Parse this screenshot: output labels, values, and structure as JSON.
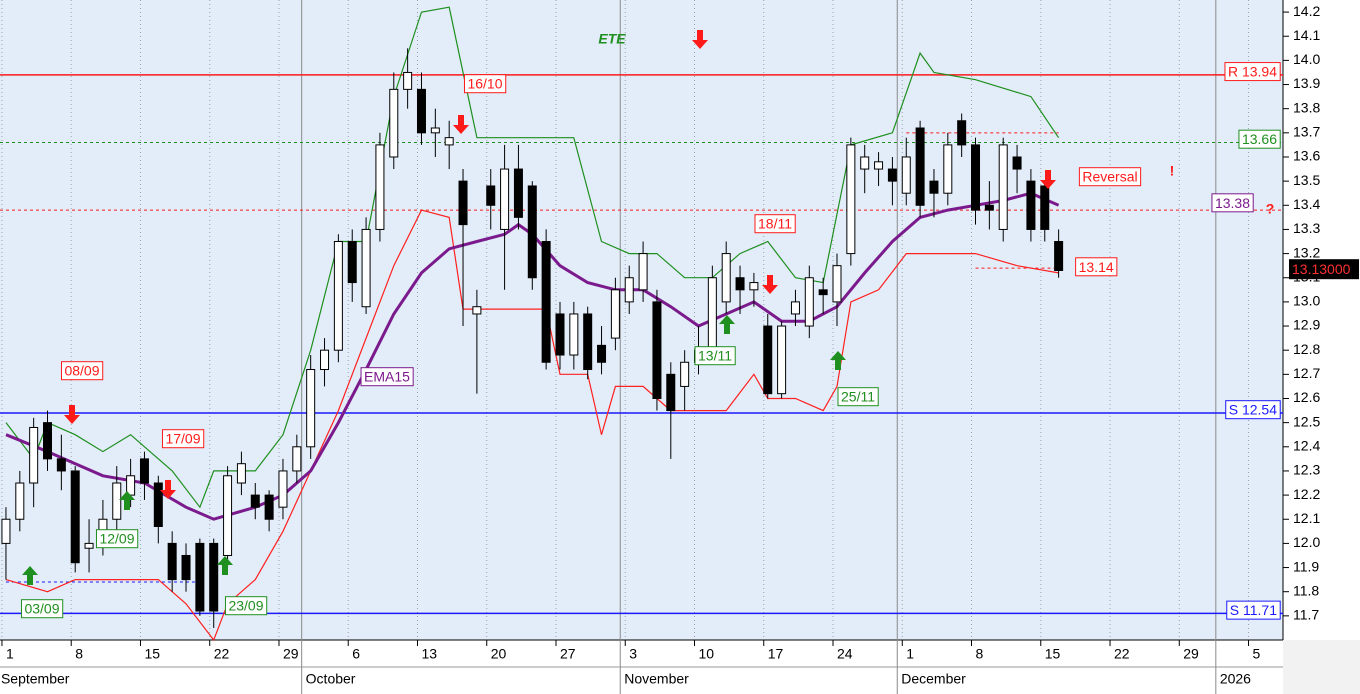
{
  "chart_data": {
    "type": "candlestick",
    "title": "ETE",
    "xlim": [
      -0.43,
      92.2
    ],
    "ylim": [
      11.6,
      14.25
    ],
    "yticks": [
      14.2,
      14.1,
      {
        "value": 14,
        "label": "14.0"
      },
      13.9,
      13.8,
      13.7,
      13.6,
      13.5,
      13.4,
      13.3,
      13.2,
      13.1,
      {
        "value": 13,
        "label": "13.0"
      },
      12.9,
      12.8,
      12.7,
      12.6,
      12.5,
      12.4,
      12.3,
      12.2,
      12.1,
      {
        "value": 12,
        "label": "12.0"
      },
      11.9,
      11.8,
      11.7
    ],
    "xticks": [
      {
        "value": 0,
        "label": "1"
      },
      {
        "value": 5,
        "label": "8"
      },
      {
        "value": 10,
        "label": "15"
      },
      {
        "value": 15,
        "label": "22"
      },
      {
        "value": 20,
        "label": "29"
      },
      {
        "value": 25,
        "label": "6"
      },
      {
        "value": 30,
        "label": "13"
      },
      {
        "value": 35,
        "label": "20"
      },
      {
        "value": 40,
        "label": "27"
      },
      {
        "value": 45,
        "label": "3"
      },
      {
        "value": 50,
        "label": "10"
      },
      {
        "value": 55,
        "label": "17"
      },
      {
        "value": 60,
        "label": "24"
      },
      {
        "value": 65,
        "label": "1"
      },
      {
        "value": 70,
        "label": "8"
      },
      {
        "value": 75,
        "label": "15"
      },
      {
        "value": 80,
        "label": "22"
      },
      {
        "value": 85,
        "label": "29"
      },
      {
        "value": 90,
        "label": "5"
      }
    ],
    "months": [
      {
        "value": 0,
        "label": "September"
      },
      {
        "value": 22,
        "label": "October"
      },
      {
        "value": 45,
        "label": "November"
      },
      {
        "value": 65,
        "label": "December"
      },
      {
        "value": 88,
        "label": "2026"
      }
    ],
    "grid": true,
    "open": [
      12.0,
      12.1,
      12.25,
      12.5,
      12.35,
      12.3,
      11.98,
      12.0,
      12.1,
      12.2,
      12.35,
      12.25,
      12.0,
      11.95,
      12.0,
      12.0,
      11.95,
      12.25,
      12.2,
      12.2,
      12.15,
      12.3,
      12.4,
      12.72,
      12.8,
      13.25,
      12.98,
      13.3,
      13.6,
      13.88,
      13.88,
      13.7,
      13.65,
      13.5,
      12.95,
      13.48,
      13.3,
      13.55,
      13.48,
      13.25,
      12.95,
      12.78,
      12.95,
      12.82,
      12.85,
      13.0,
      13.05,
      13.0,
      12.7,
      12.65,
      12.75,
      12.8,
      13.0,
      13.1,
      13.05,
      12.9,
      12.62,
      12.95,
      12.9,
      13.05,
      13.0,
      13.2,
      13.55,
      13.55,
      13.55,
      13.45,
      13.72,
      13.5,
      13.45,
      13.75,
      13.65,
      13.4,
      13.3,
      13.6,
      13.5,
      13.48,
      13.25
    ],
    "high": [
      12.15,
      12.3,
      12.52,
      12.55,
      12.45,
      12.32,
      12.1,
      12.18,
      12.32,
      12.35,
      12.38,
      12.28,
      12.05,
      12.0,
      12.02,
      12.02,
      12.32,
      12.38,
      12.25,
      12.22,
      12.35,
      12.45,
      12.78,
      12.85,
      13.28,
      13.3,
      13.35,
      13.7,
      13.95,
      14.05,
      13.95,
      13.8,
      13.75,
      13.55,
      13.05,
      13.55,
      13.65,
      13.65,
      13.5,
      13.3,
      13.0,
      13.0,
      12.98,
      12.9,
      13.1,
      13.15,
      13.25,
      13.05,
      12.75,
      12.8,
      12.9,
      13.15,
      13.25,
      13.15,
      13.12,
      12.95,
      12.92,
      13.05,
      13.15,
      13.1,
      13.2,
      13.68,
      13.65,
      13.62,
      13.6,
      13.68,
      13.75,
      13.55,
      13.7,
      13.78,
      13.68,
      13.5,
      13.68,
      13.65,
      13.55,
      13.5,
      13.3
    ],
    "low": [
      11.85,
      12.05,
      12.15,
      12.3,
      12.22,
      11.88,
      11.88,
      11.95,
      12.05,
      12.15,
      12.18,
      12.0,
      11.8,
      11.8,
      11.7,
      11.65,
      11.9,
      12.2,
      12.1,
      12.05,
      12.1,
      12.25,
      12.35,
      12.65,
      12.75,
      13.0,
      12.95,
      13.25,
      13.55,
      13.8,
      13.65,
      13.6,
      13.55,
      12.9,
      12.62,
      13.3,
      13.05,
      13.3,
      13.05,
      12.72,
      12.72,
      12.72,
      12.68,
      12.7,
      12.8,
      12.95,
      13.0,
      12.55,
      12.35,
      12.55,
      12.7,
      12.75,
      12.95,
      12.95,
      12.98,
      12.6,
      12.6,
      12.9,
      12.85,
      12.95,
      12.9,
      13.15,
      13.45,
      13.48,
      13.4,
      13.4,
      13.35,
      13.35,
      13.4,
      13.6,
      13.32,
      13.3,
      13.25,
      13.45,
      13.25,
      13.25,
      13.1
    ],
    "close": [
      12.1,
      12.25,
      12.48,
      12.35,
      12.3,
      11.92,
      12.0,
      12.1,
      12.25,
      12.28,
      12.25,
      12.07,
      11.85,
      11.85,
      11.72,
      11.72,
      12.28,
      12.33,
      12.15,
      12.1,
      12.3,
      12.4,
      12.72,
      12.8,
      13.25,
      13.08,
      13.3,
      13.65,
      13.88,
      13.95,
      13.7,
      13.72,
      13.68,
      13.32,
      12.98,
      13.4,
      13.55,
      13.35,
      13.1,
      12.75,
      12.78,
      12.95,
      12.72,
      12.75,
      13.05,
      13.1,
      13.2,
      12.6,
      12.55,
      12.75,
      12.8,
      13.1,
      13.2,
      13.05,
      13.08,
      12.62,
      12.9,
      13.0,
      13.1,
      13.03,
      13.15,
      13.65,
      13.6,
      13.58,
      13.5,
      13.6,
      13.4,
      13.45,
      13.65,
      13.65,
      13.38,
      13.38,
      13.65,
      13.55,
      13.3,
      13.3,
      13.13
    ],
    "lines": [
      {
        "color": "#1f8f1f",
        "x": [
          0,
          2,
          3,
          5,
          7,
          9,
          12,
          14,
          15,
          18,
          20,
          22,
          24,
          26,
          28,
          30,
          32,
          34,
          36,
          38,
          41,
          43,
          45,
          47,
          49,
          51,
          53,
          55,
          57,
          59,
          61,
          64,
          66,
          67,
          70,
          74,
          76
        ],
        "values": [
          12.5,
          12.35,
          12.5,
          12.45,
          12.38,
          12.45,
          12.3,
          12.15,
          12.3,
          12.3,
          12.45,
          12.8,
          13.25,
          13.25,
          13.85,
          14.2,
          14.22,
          13.68,
          13.68,
          13.68,
          13.68,
          13.25,
          13.2,
          13.2,
          13.1,
          13.1,
          13.2,
          13.25,
          13.1,
          13.08,
          13.65,
          13.7,
          14.03,
          13.95,
          13.92,
          13.85,
          13.68
        ]
      },
      {
        "color": "#ff2020",
        "x": [
          0,
          3,
          5,
          8,
          11,
          13,
          15,
          16,
          18,
          20,
          22,
          24,
          26,
          28,
          30,
          32,
          33,
          36,
          39,
          40,
          42,
          43,
          44,
          46,
          48,
          52,
          54,
          55,
          57,
          59,
          60,
          61,
          63,
          65,
          67,
          70,
          73,
          76
        ],
        "values": [
          11.85,
          11.8,
          11.85,
          11.85,
          11.85,
          11.75,
          11.6,
          11.75,
          11.85,
          12.05,
          12.3,
          12.55,
          12.85,
          13.15,
          13.38,
          13.35,
          12.97,
          12.97,
          12.97,
          12.7,
          12.7,
          12.45,
          12.65,
          12.65,
          12.55,
          12.55,
          12.7,
          12.6,
          12.6,
          12.55,
          12.65,
          13.0,
          13.05,
          13.2,
          13.2,
          13.2,
          13.15,
          13.12
        ]
      },
      {
        "color": "#7b1a8c",
        "x": [
          0,
          3,
          7,
          10,
          13,
          15,
          18,
          20,
          22,
          24,
          26,
          28,
          30,
          32,
          34,
          36,
          37,
          38,
          40,
          42,
          44,
          46,
          48,
          50,
          52,
          54,
          56,
          58,
          60,
          62,
          64,
          66,
          68,
          70,
          72,
          74,
          76
        ],
        "values": [
          12.45,
          12.38,
          12.28,
          12.25,
          12.15,
          12.1,
          12.15,
          12.2,
          12.3,
          12.5,
          12.72,
          12.95,
          13.12,
          13.22,
          13.25,
          13.28,
          13.32,
          13.28,
          13.15,
          13.08,
          13.05,
          13.05,
          12.98,
          12.9,
          12.95,
          13.0,
          12.92,
          12.92,
          12.98,
          13.12,
          13.25,
          13.35,
          13.38,
          13.4,
          13.42,
          13.45,
          13.4
        ]
      }
    ],
    "levels": [
      {
        "value": 13.94,
        "label": "R 13.94",
        "color": "#ff1a1a",
        "dashed": false
      },
      {
        "value": 13.66,
        "label": "13.66",
        "color": "#1f8f1f",
        "dashed": true
      },
      {
        "value": 13.38,
        "label": "13.38",
        "color": "#ff1a1a",
        "dashed": true,
        "label_color": "#7b1a8c"
      },
      {
        "value": 12.54,
        "label": "S 12.54",
        "color": "#1a1aff",
        "dashed": false
      },
      {
        "value": 11.71,
        "label": "S 11.71",
        "color": "#1a1aff",
        "dashed": false
      },
      {
        "value": 13.14,
        "label": "13.14",
        "color": "#ff1a1a",
        "dashed": true,
        "x": [
          70,
          76
        ]
      },
      {
        "value": 13.7,
        "color": "#ff1a1a",
        "dashed": true,
        "x": [
          65,
          76
        ]
      },
      {
        "value": 11.84,
        "color": "#1a1aff",
        "dashed": true,
        "x": [
          0,
          14
        ]
      }
    ],
    "last_price": {
      "value": 13.13,
      "label": "13.13000"
    },
    "annotations": [
      {
        "text": "16/10",
        "color": "#ff1a1a"
      },
      {
        "text": "08/09",
        "color": "#ff1a1a"
      },
      {
        "text": "17/09",
        "color": "#ff1a1a"
      },
      {
        "text": "18/11",
        "color": "#ff1a1a"
      },
      {
        "text": "12/09",
        "color": "#1f8f1f"
      },
      {
        "text": "03/09",
        "color": "#1f8f1f"
      },
      {
        "text": "23/09",
        "color": "#1f8f1f"
      },
      {
        "text": "13/11",
        "color": "#1f8f1f"
      },
      {
        "text": "25/11",
        "color": "#1f8f1f"
      },
      {
        "text": "EMA15",
        "color": "#7b1a8c"
      },
      {
        "text": "Reversal",
        "color": "#ff1a1a"
      }
    ],
    "marks": [
      "!",
      "?"
    ]
  }
}
